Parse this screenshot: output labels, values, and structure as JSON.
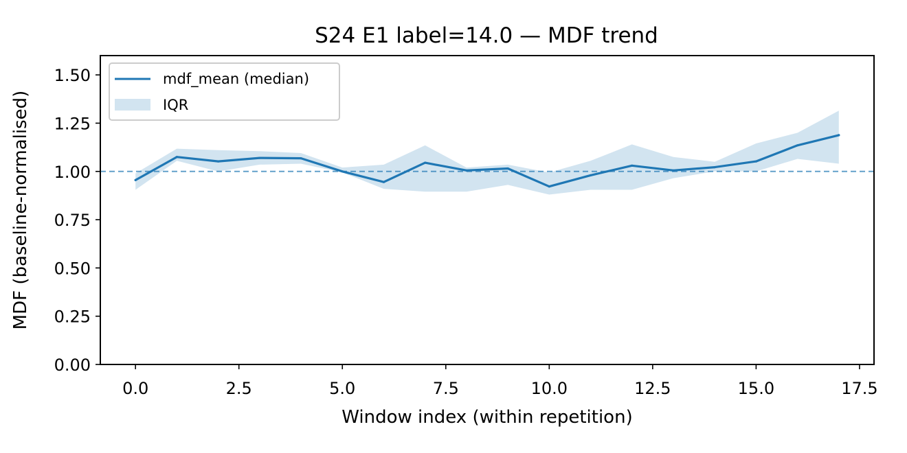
{
  "chart_data": {
    "type": "line",
    "title": "S24 E1 label=14.0 — MDF trend",
    "xlabel": "Window index (within repetition)",
    "ylabel": "MDF (baseline-normalised)",
    "xlim": [
      -0.85,
      17.85
    ],
    "ylim": [
      0.0,
      1.6
    ],
    "xticks": [
      0.0,
      2.5,
      5.0,
      7.5,
      10.0,
      12.5,
      15.0,
      17.5
    ],
    "xtick_labels": [
      "0.0",
      "2.5",
      "5.0",
      "7.5",
      "10.0",
      "12.5",
      "15.0",
      "17.5"
    ],
    "yticks": [
      0.0,
      0.25,
      0.5,
      0.75,
      1.0,
      1.25,
      1.5
    ],
    "ytick_labels": [
      "0.00",
      "0.25",
      "0.50",
      "0.75",
      "1.00",
      "1.25",
      "1.50"
    ],
    "grid": false,
    "legend_position": "top-left",
    "baseline": 1.0,
    "x": [
      0,
      1,
      2,
      3,
      4,
      5,
      6,
      7,
      8,
      9,
      10,
      11,
      12,
      13,
      14,
      15,
      16,
      17
    ],
    "series": [
      {
        "name": "mdf_mean (median)",
        "color": "#1f77b4",
        "values": [
          0.955,
          1.075,
          1.052,
          1.07,
          1.068,
          1.0,
          0.945,
          1.045,
          1.005,
          1.015,
          0.922,
          0.98,
          1.03,
          1.005,
          1.022,
          1.052,
          1.135,
          1.188
        ]
      }
    ],
    "band": {
      "name": "IQR",
      "color": "#1f77b4",
      "opacity": 0.2,
      "lower": [
        0.905,
        1.055,
        1.0,
        1.035,
        1.04,
        0.995,
        0.91,
        0.895,
        0.895,
        0.93,
        0.88,
        0.905,
        0.905,
        0.965,
        1.0,
        1.0,
        1.065,
        1.04
      ],
      "upper": [
        0.99,
        1.118,
        1.11,
        1.105,
        1.095,
        1.02,
        1.035,
        1.135,
        1.02,
        1.035,
        0.995,
        1.055,
        1.14,
        1.075,
        1.05,
        1.145,
        1.2,
        1.315
      ]
    }
  }
}
